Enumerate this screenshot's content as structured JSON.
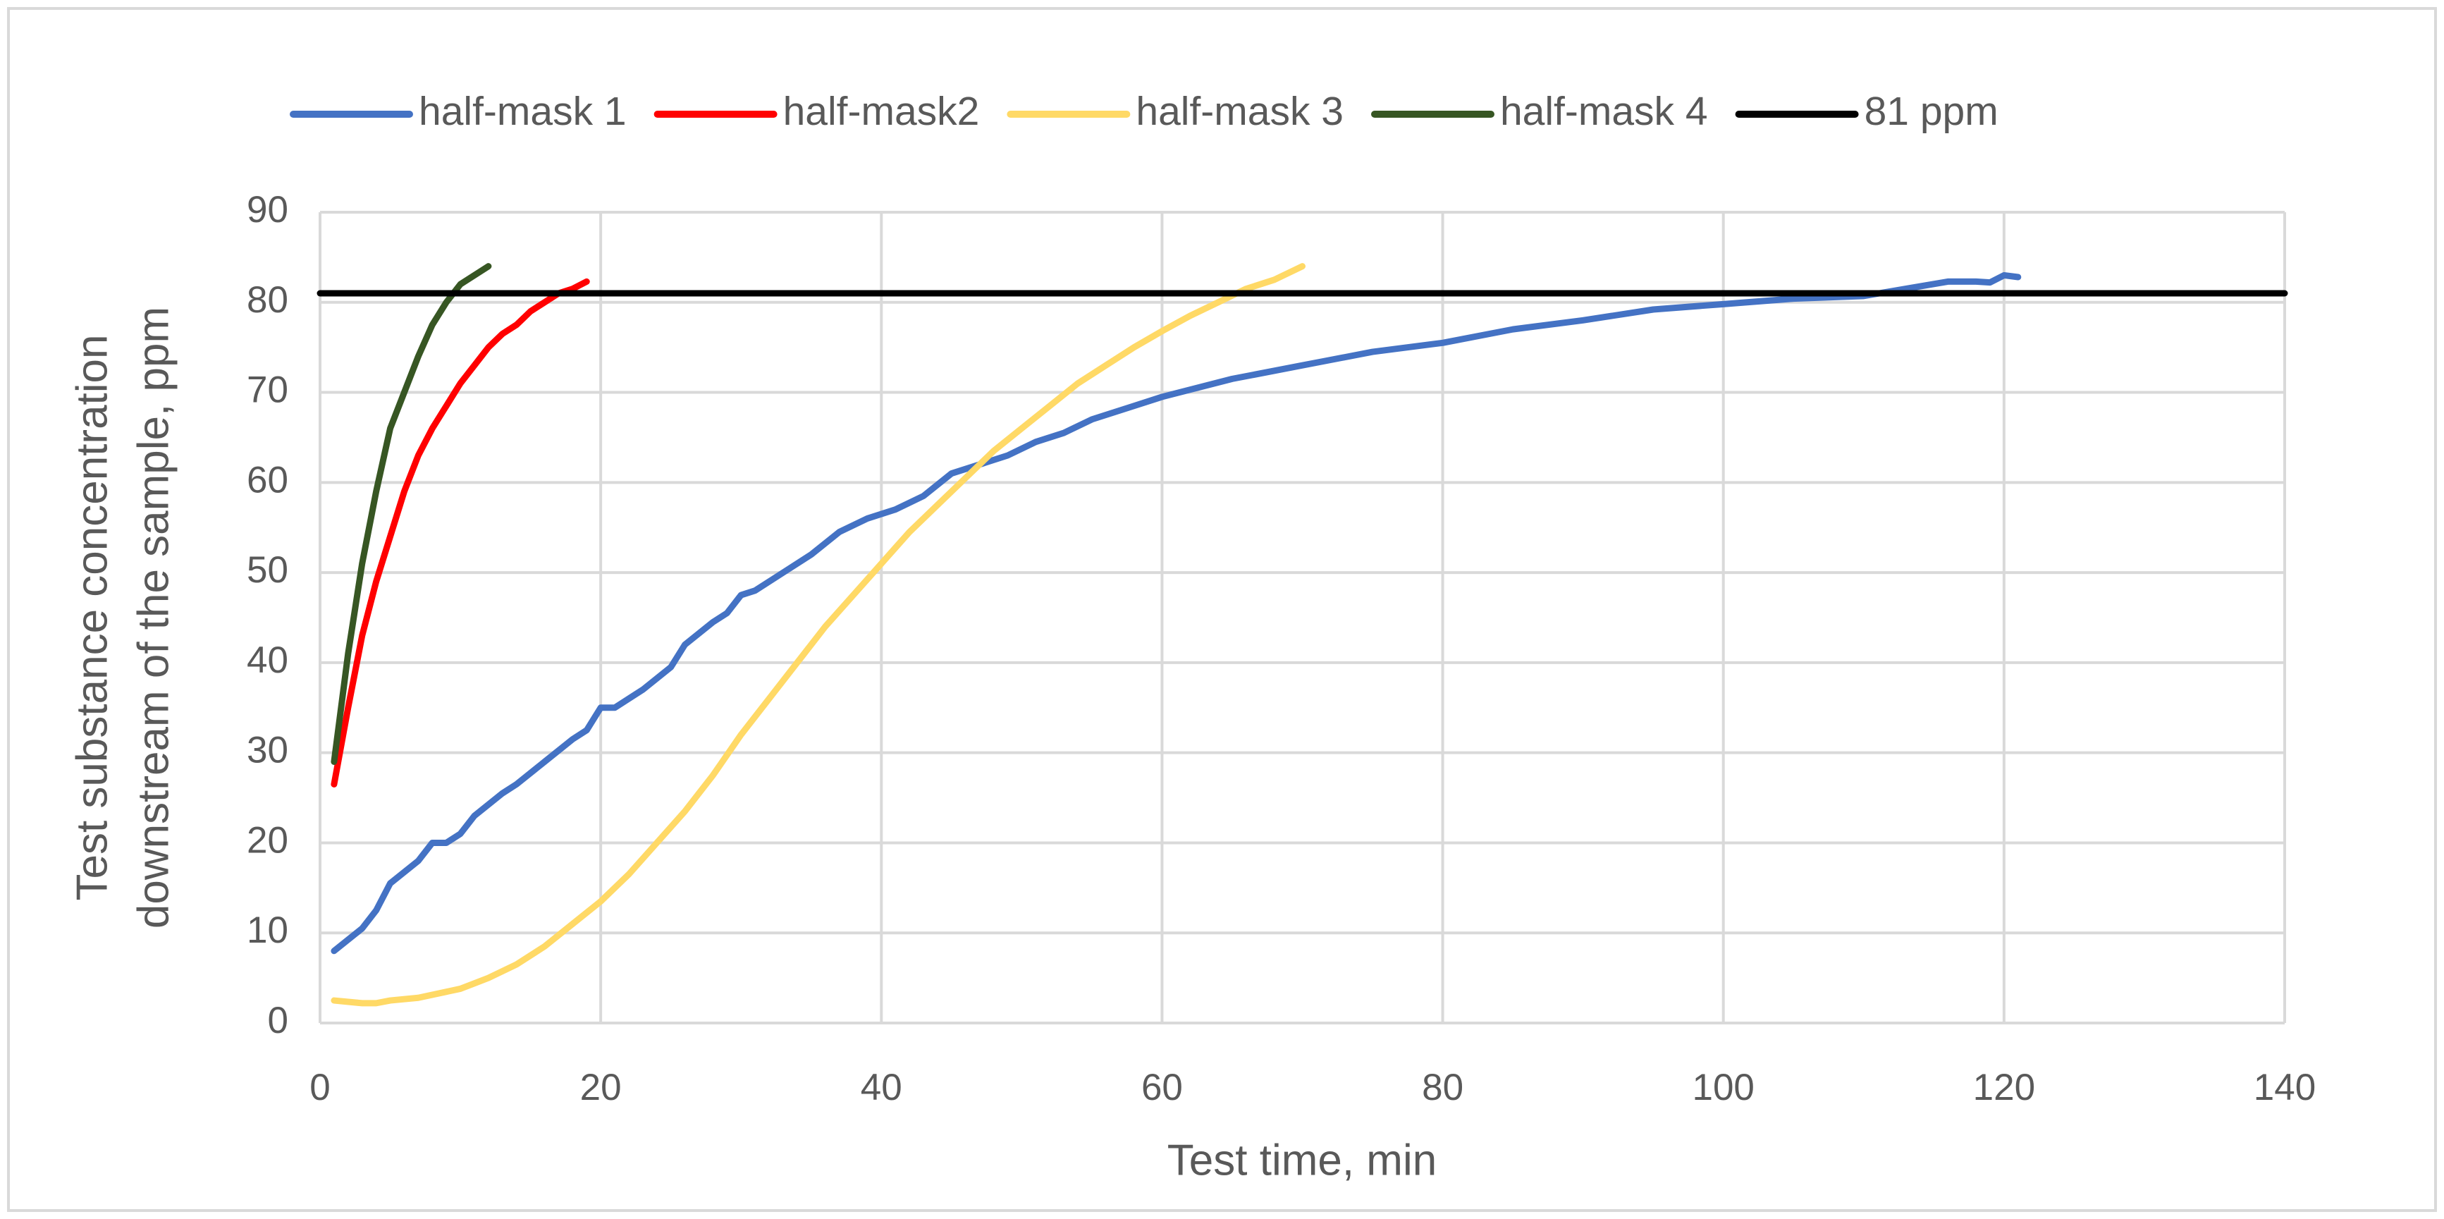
{
  "chart_data": {
    "type": "line",
    "x_label": "Test time, min",
    "y_label": [
      "Test substance concentration",
      "downstream of the sample, ppm"
    ],
    "xlim": [
      0,
      140
    ],
    "xticks": [
      0,
      20,
      40,
      60,
      80,
      100,
      120,
      140
    ],
    "ylim": [
      0,
      90
    ],
    "yticks": [
      0,
      10,
      20,
      30,
      40,
      50,
      60,
      70,
      80,
      90
    ],
    "grid": true,
    "legend": "top",
    "series": [
      {
        "name": "half-mask 1",
        "color": "#4472c4",
        "x": [
          1,
          3,
          4,
          5,
          7,
          8,
          9,
          10,
          11,
          13,
          14,
          16,
          18,
          19,
          20,
          21,
          23,
          25,
          26,
          28,
          29,
          30,
          31,
          33,
          35,
          37,
          39,
          41,
          43,
          45,
          47,
          49,
          51,
          53,
          55,
          58,
          60,
          65,
          70,
          75,
          80,
          85,
          90,
          95,
          100,
          105,
          110,
          113,
          116,
          118,
          119,
          120,
          121
        ],
        "values": [
          8,
          10.5,
          12.5,
          15.5,
          18,
          20,
          20,
          21,
          23,
          25.5,
          26.5,
          29,
          31.5,
          32.5,
          35,
          35,
          37,
          39.5,
          42,
          44.5,
          45.5,
          47.5,
          48,
          50,
          52,
          54.5,
          56,
          57,
          58.5,
          61,
          62,
          63,
          64.5,
          65.5,
          67,
          68.5,
          69.5,
          71.5,
          73,
          74.5,
          75.5,
          77,
          78,
          79.2,
          79.8,
          80.4,
          80.7,
          81.5,
          82.3,
          82.3,
          82.2,
          83,
          82.8
        ]
      },
      {
        "name": "half-mask2",
        "color": "#ff0000",
        "x": [
          1,
          2,
          3,
          4,
          5,
          6,
          7,
          8,
          9,
          10,
          11,
          12,
          13,
          14,
          15,
          16,
          17,
          18,
          19
        ],
        "values": [
          26.5,
          35,
          43,
          49,
          54,
          59,
          63,
          66,
          68.5,
          71,
          73,
          75,
          76.5,
          77.5,
          79,
          80,
          81,
          81.5,
          82.3
        ]
      },
      {
        "name": "half-mask 3",
        "color": "#ffd966",
        "x": [
          1,
          3,
          4,
          5,
          7,
          10,
          12,
          14,
          16,
          18,
          20,
          22,
          24,
          26,
          28,
          30,
          32,
          34,
          36,
          38,
          40,
          42,
          44,
          46,
          48,
          50,
          52,
          54,
          56,
          58,
          60,
          62,
          64,
          66,
          68,
          70
        ],
        "values": [
          2.5,
          2.2,
          2.2,
          2.5,
          2.8,
          3.8,
          5,
          6.5,
          8.5,
          11,
          13.5,
          16.5,
          20,
          23.5,
          27.5,
          32,
          36,
          40,
          44,
          47.5,
          51,
          54.5,
          57.5,
          60.5,
          63.5,
          66,
          68.5,
          71,
          73,
          75,
          76.8,
          78.5,
          80,
          81.5,
          82.5,
          84
        ]
      },
      {
        "name": "half-mask 4",
        "color": "#375623",
        "x": [
          1,
          2,
          3,
          4,
          5,
          6,
          7,
          8,
          9,
          10,
          11,
          12
        ],
        "values": [
          29,
          41,
          51,
          59,
          66,
          70,
          74,
          77.5,
          80,
          82,
          83,
          84
        ]
      },
      {
        "name": "81 ppm",
        "color": "#000000",
        "x": [
          0,
          140
        ],
        "values": [
          81,
          81
        ]
      }
    ]
  }
}
